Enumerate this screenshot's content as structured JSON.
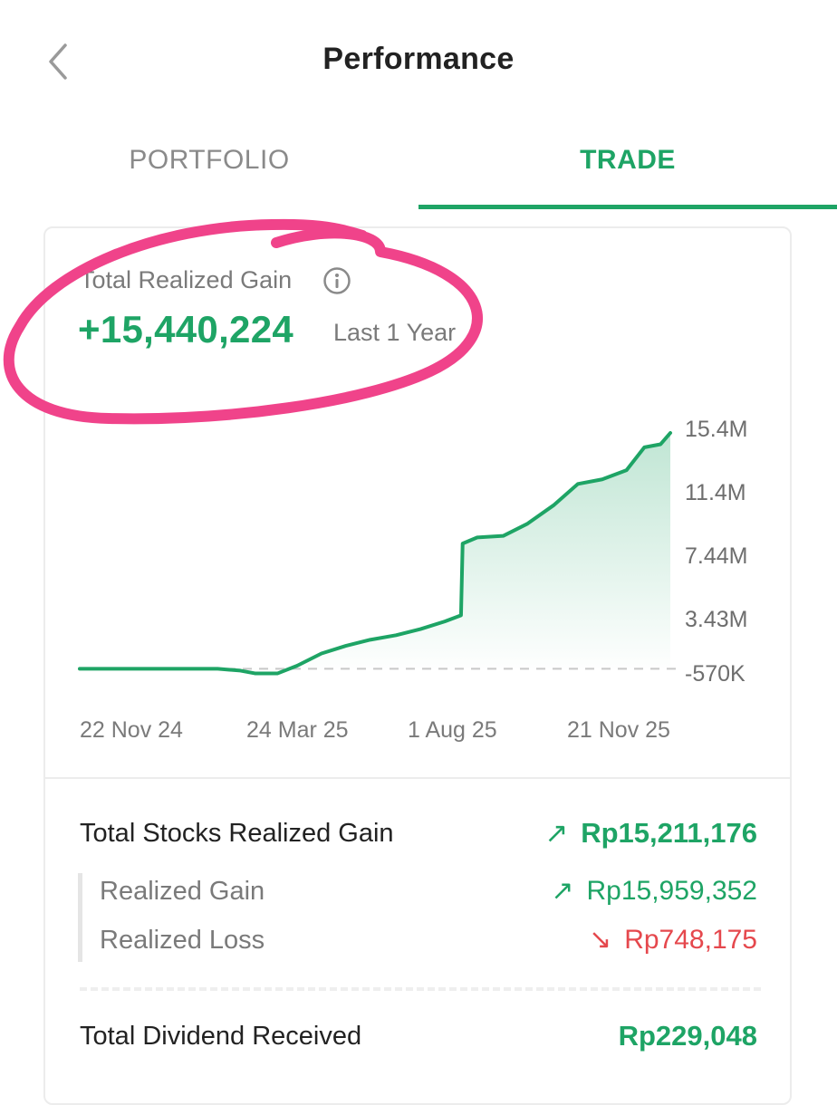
{
  "header": {
    "title": "Performance"
  },
  "tabs": [
    {
      "label": "PORTFOLIO",
      "active": false
    },
    {
      "label": "TRADE",
      "active": true
    }
  ],
  "summary": {
    "label": "Total Realized Gain",
    "value": "+15,440,224",
    "period": "Last 1 Year"
  },
  "chart_data": {
    "type": "area",
    "y_tick_labels": [
      "15.4M",
      "11.4M",
      "7.44M",
      "3.43M",
      "-570K"
    ],
    "x_tick_labels": [
      "22 Nov 24",
      "24 Mar 25",
      "1 Aug 25",
      "21 Nov 25"
    ],
    "ylim": [
      -570000,
      15440224
    ],
    "baseline": 0,
    "series": [
      {
        "x": [
          "2024-11-22",
          "2024-12-15",
          "2025-01-15",
          "2025-02-15",
          "2025-03-01",
          "2025-03-10",
          "2025-03-24",
          "2025-04-05",
          "2025-04-20",
          "2025-05-05",
          "2025-05-20",
          "2025-06-05",
          "2025-06-20",
          "2025-07-05",
          "2025-07-15",
          "2025-07-16",
          "2025-07-25",
          "2025-08-10",
          "2025-08-25",
          "2025-09-10",
          "2025-09-25",
          "2025-10-10",
          "2025-10-25",
          "2025-11-05",
          "2025-11-15",
          "2025-11-21"
        ],
        "y": [
          0,
          0,
          0,
          0,
          -120000,
          -300000,
          -300000,
          200000,
          1000000,
          1500000,
          1900000,
          2200000,
          2600000,
          3100000,
          3500000,
          8200000,
          8600000,
          8700000,
          9500000,
          10700000,
          12100000,
          12400000,
          13000000,
          14500000,
          14700000,
          15440224
        ]
      }
    ],
    "colors": {
      "line": "#1ea465",
      "fill": "#1ea465"
    }
  },
  "breakdown": {
    "total_stocks": {
      "label": "Total Stocks Realized Gain",
      "value": "Rp15,211,176",
      "arrow": "↗"
    },
    "realized_gain": {
      "label": "Realized Gain",
      "value": "Rp15,959,352",
      "arrow": "↗"
    },
    "realized_loss": {
      "label": "Realized Loss",
      "value": "Rp748,175",
      "arrow": "↘"
    },
    "dividend": {
      "label": "Total Dividend Received",
      "value": "Rp229,048"
    }
  },
  "colors": {
    "accent": "#1ea465",
    "loss": "#e5484d",
    "annotation": "#f0438a"
  }
}
